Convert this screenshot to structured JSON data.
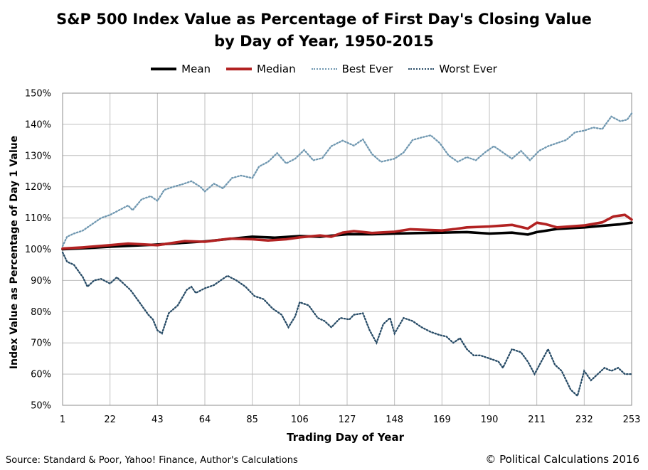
{
  "chart_data": {
    "type": "line",
    "title": "S&P 500 Index Value as Percentage of First Day's Closing Value",
    "subtitle": "by Day of Year, 1950-2015",
    "xlabel": "Trading Day of Year",
    "ylabel": "Index Value as Percentage of Day 1 Value",
    "xlim": [
      1,
      253
    ],
    "ylim": [
      50,
      150
    ],
    "x_ticks": [
      1,
      22,
      43,
      64,
      85,
      106,
      127,
      148,
      169,
      190,
      211,
      232,
      253
    ],
    "y_ticks": [
      50,
      60,
      70,
      80,
      90,
      100,
      110,
      120,
      130,
      140,
      150
    ],
    "y_tick_labels": [
      "50%",
      "60%",
      "70%",
      "80%",
      "90%",
      "100%",
      "110%",
      "120%",
      "130%",
      "140%",
      "150%"
    ],
    "grid": "vertical and horizontal",
    "legend_position": "top",
    "series": [
      {
        "name": "Mean",
        "color": "#000000",
        "style": "solid-thick",
        "points": [
          [
            1,
            100
          ],
          [
            10,
            100.3
          ],
          [
            22,
            100.8
          ],
          [
            43,
            101.5
          ],
          [
            64,
            102.5
          ],
          [
            75,
            103.3
          ],
          [
            85,
            104
          ],
          [
            95,
            103.7
          ],
          [
            106,
            104.2
          ],
          [
            115,
            104
          ],
          [
            127,
            104.8
          ],
          [
            138,
            104.8
          ],
          [
            148,
            105
          ],
          [
            160,
            105.2
          ],
          [
            169,
            105.3
          ],
          [
            180,
            105.5
          ],
          [
            190,
            105
          ],
          [
            200,
            105.3
          ],
          [
            207,
            104.7
          ],
          [
            211,
            105.5
          ],
          [
            220,
            106.5
          ],
          [
            232,
            107
          ],
          [
            240,
            107.5
          ],
          [
            248,
            108
          ],
          [
            253,
            108.5
          ]
        ]
      },
      {
        "name": "Median",
        "color": "#b22222",
        "style": "solid-thick",
        "points": [
          [
            1,
            100.2
          ],
          [
            10,
            100.6
          ],
          [
            22,
            101.3
          ],
          [
            30,
            101.8
          ],
          [
            43,
            101.3
          ],
          [
            55,
            102.6
          ],
          [
            64,
            102.4
          ],
          [
            75,
            103.4
          ],
          [
            85,
            103.2
          ],
          [
            92,
            102.8
          ],
          [
            100,
            103.2
          ],
          [
            106,
            103.8
          ],
          [
            115,
            104.4
          ],
          [
            120,
            104
          ],
          [
            125,
            105.3
          ],
          [
            130,
            105.8
          ],
          [
            138,
            105.2
          ],
          [
            148,
            105.6
          ],
          [
            155,
            106.4
          ],
          [
            162,
            106.2
          ],
          [
            169,
            106
          ],
          [
            175,
            106.5
          ],
          [
            180,
            107
          ],
          [
            190,
            107.3
          ],
          [
            200,
            107.8
          ],
          [
            207,
            106.6
          ],
          [
            211,
            108.5
          ],
          [
            215,
            108
          ],
          [
            220,
            107
          ],
          [
            232,
            107.6
          ],
          [
            240,
            108.6
          ],
          [
            245,
            110.5
          ],
          [
            250,
            111
          ],
          [
            253,
            109.5
          ]
        ]
      },
      {
        "name": "Best Ever",
        "color": "#6f97b0",
        "style": "dotted",
        "points": [
          [
            1,
            101
          ],
          [
            3,
            104
          ],
          [
            6,
            105
          ],
          [
            10,
            106
          ],
          [
            14,
            108
          ],
          [
            18,
            110
          ],
          [
            22,
            111
          ],
          [
            26,
            112.5
          ],
          [
            30,
            114
          ],
          [
            32,
            112.5
          ],
          [
            36,
            116
          ],
          [
            40,
            117
          ],
          [
            43,
            115.5
          ],
          [
            46,
            119
          ],
          [
            50,
            120
          ],
          [
            54,
            120.8
          ],
          [
            58,
            121.8
          ],
          [
            62,
            120
          ],
          [
            64,
            118.5
          ],
          [
            68,
            121
          ],
          [
            72,
            119.5
          ],
          [
            76,
            122.8
          ],
          [
            80,
            123.6
          ],
          [
            85,
            122.8
          ],
          [
            88,
            126.5
          ],
          [
            92,
            128
          ],
          [
            96,
            130.8
          ],
          [
            100,
            127.5
          ],
          [
            104,
            129
          ],
          [
            108,
            131.8
          ],
          [
            112,
            128.5
          ],
          [
            116,
            129.2
          ],
          [
            120,
            133
          ],
          [
            125,
            134.8
          ],
          [
            130,
            133.2
          ],
          [
            134,
            135.2
          ],
          [
            138,
            130.5
          ],
          [
            142,
            128
          ],
          [
            148,
            129
          ],
          [
            152,
            131
          ],
          [
            156,
            135
          ],
          [
            160,
            135.8
          ],
          [
            164,
            136.5
          ],
          [
            168,
            134
          ],
          [
            172,
            130
          ],
          [
            176,
            128
          ],
          [
            180,
            129.5
          ],
          [
            184,
            128.5
          ],
          [
            188,
            131
          ],
          [
            192,
            133
          ],
          [
            196,
            131
          ],
          [
            200,
            129
          ],
          [
            204,
            131.5
          ],
          [
            208,
            128.5
          ],
          [
            212,
            131.5
          ],
          [
            216,
            133
          ],
          [
            220,
            134
          ],
          [
            224,
            135
          ],
          [
            228,
            137.5
          ],
          [
            232,
            138
          ],
          [
            236,
            139
          ],
          [
            240,
            138.5
          ],
          [
            244,
            142.5
          ],
          [
            248,
            141
          ],
          [
            251,
            141.5
          ],
          [
            253,
            143.5
          ]
        ]
      },
      {
        "name": "Worst Ever",
        "color": "#274b66",
        "style": "dotted",
        "points": [
          [
            1,
            99
          ],
          [
            3,
            96
          ],
          [
            6,
            95
          ],
          [
            10,
            91
          ],
          [
            12,
            88
          ],
          [
            15,
            90
          ],
          [
            18,
            90.5
          ],
          [
            22,
            89
          ],
          [
            25,
            91
          ],
          [
            28,
            89
          ],
          [
            31,
            87
          ],
          [
            34,
            84
          ],
          [
            36,
            82
          ],
          [
            39,
            79
          ],
          [
            41,
            77.5
          ],
          [
            43,
            74
          ],
          [
            45,
            73
          ],
          [
            48,
            79.5
          ],
          [
            52,
            82
          ],
          [
            56,
            87
          ],
          [
            58,
            88
          ],
          [
            60,
            86
          ],
          [
            64,
            87.5
          ],
          [
            68,
            88.5
          ],
          [
            71,
            90
          ],
          [
            74,
            91.5
          ],
          [
            78,
            90
          ],
          [
            82,
            88
          ],
          [
            86,
            85
          ],
          [
            90,
            84
          ],
          [
            94,
            81
          ],
          [
            98,
            79
          ],
          [
            101,
            75
          ],
          [
            104,
            78.5
          ],
          [
            106,
            83
          ],
          [
            110,
            82
          ],
          [
            114,
            78
          ],
          [
            117,
            77
          ],
          [
            120,
            75
          ],
          [
            124,
            78
          ],
          [
            128,
            77.5
          ],
          [
            130,
            79
          ],
          [
            134,
            79.5
          ],
          [
            137,
            74
          ],
          [
            140,
            70
          ],
          [
            143,
            76
          ],
          [
            146,
            78
          ],
          [
            148,
            73
          ],
          [
            152,
            78
          ],
          [
            156,
            77
          ],
          [
            160,
            75
          ],
          [
            164,
            73.5
          ],
          [
            168,
            72.5
          ],
          [
            171,
            72
          ],
          [
            174,
            70
          ],
          [
            177,
            71.5
          ],
          [
            180,
            68
          ],
          [
            183,
            66
          ],
          [
            186,
            66
          ],
          [
            190,
            65
          ],
          [
            194,
            64
          ],
          [
            196,
            62
          ],
          [
            198,
            65
          ],
          [
            200,
            68
          ],
          [
            204,
            67
          ],
          [
            207,
            64
          ],
          [
            210,
            60
          ],
          [
            213,
            64
          ],
          [
            216,
            68
          ],
          [
            219,
            63
          ],
          [
            222,
            61
          ],
          [
            226,
            55
          ],
          [
            229,
            53
          ],
          [
            232,
            61
          ],
          [
            235,
            58
          ],
          [
            238,
            60
          ],
          [
            241,
            62
          ],
          [
            244,
            61
          ],
          [
            247,
            62
          ],
          [
            250,
            60
          ],
          [
            253,
            60
          ]
        ]
      }
    ]
  },
  "footer": {
    "source": "Source: Standard & Poor, Yahoo! Finance, Author's Calculations",
    "copyright": "© Political Calculations 2016"
  }
}
